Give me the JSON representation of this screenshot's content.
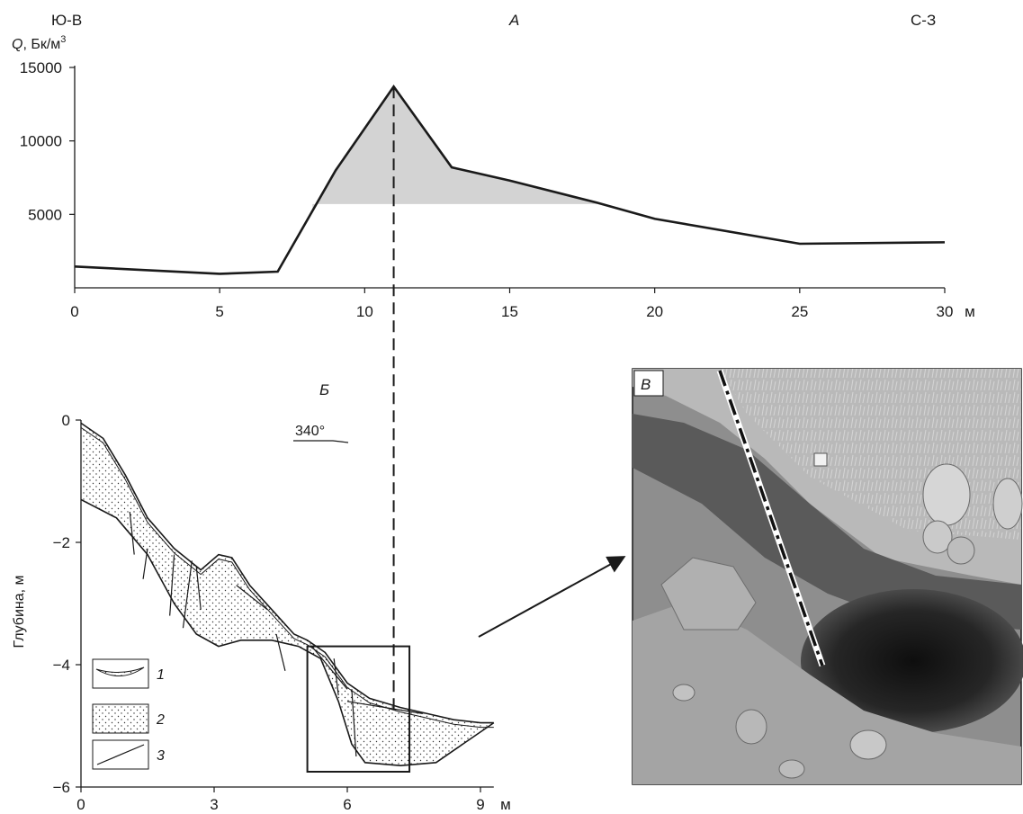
{
  "chart_data": [
    {
      "panel": "А",
      "type": "area",
      "corner_labels": {
        "left": "Ю-В",
        "right": "С-З"
      },
      "ylabel_symbol": "Q",
      "ylabel_units": ", Бк/м",
      "ylabel_sup": "3",
      "xunit": "м",
      "xlim": [
        0,
        30
      ],
      "ylim": [
        0,
        15000
      ],
      "xticks": [
        0,
        5,
        10,
        15,
        20,
        25,
        30
      ],
      "xtick_labels": [
        "0",
        "5",
        "10",
        "15",
        "20",
        "25",
        "30"
      ],
      "yticks": [
        5000,
        10000,
        15000
      ],
      "ytick_labels": [
        "5000",
        "10000",
        "15000"
      ],
      "series": [
        {
          "x": [
            0,
            5,
            7,
            9,
            11,
            13,
            15,
            18,
            20,
            25,
            30
          ],
          "y": [
            1450,
            950,
            1100,
            8000,
            13700,
            8200,
            7300,
            5800,
            4700,
            3000,
            3100
          ]
        }
      ],
      "shaded_above_y": 5700,
      "shaded_x_range": [
        8.2,
        18
      ],
      "marker_x": 11
    },
    {
      "panel": "Б",
      "type": "diagram",
      "ylabel": "Глубина, м",
      "xunit": "м",
      "xlim": [
        0,
        9.3
      ],
      "ylim": [
        -6,
        0
      ],
      "xticks": [
        0,
        3,
        6,
        9
      ],
      "xtick_labels": [
        "0",
        "3",
        "6",
        "9"
      ],
      "yticks": [
        0,
        -2,
        -4,
        -6
      ],
      "ytick_labels": [
        "0",
        "−2",
        "−4",
        "−6"
      ],
      "azimuth": "340°",
      "surface_profile": {
        "x": [
          0,
          0.5,
          1.0,
          1.5,
          2.1,
          2.7,
          3.1,
          3.4,
          3.8,
          4.3,
          4.8,
          5.1,
          5.5,
          6.0,
          6.5,
          7.2,
          7.8,
          8.4,
          9.0,
          9.3
        ],
        "y": [
          -0.05,
          -0.3,
          -0.9,
          -1.6,
          -2.1,
          -2.45,
          -2.2,
          -2.25,
          -2.7,
          -3.1,
          -3.5,
          -3.6,
          -3.8,
          -4.3,
          -4.55,
          -4.7,
          -4.8,
          -4.9,
          -4.95,
          -4.95
        ]
      },
      "base_profile": {
        "x": [
          0,
          0.8,
          1.5,
          2.1,
          2.6,
          3.1,
          3.6,
          4.3,
          4.9,
          5.4,
          5.8,
          6.1,
          6.4,
          7.2,
          8.0,
          8.6,
          9.3
        ],
        "y": [
          -1.3,
          -1.6,
          -2.2,
          -3.0,
          -3.5,
          -3.7,
          -3.6,
          -3.6,
          -3.7,
          -3.9,
          -4.6,
          -5.3,
          -5.6,
          -5.65,
          -5.6,
          -5.3,
          -4.95
        ]
      },
      "zoom_box": {
        "x": [
          5.1,
          7.4
        ],
        "y": [
          -3.7,
          -5.75
        ]
      },
      "legend": [
        {
          "id": "1",
          "label": "1"
        },
        {
          "id": "2",
          "label": "2"
        },
        {
          "id": "3",
          "label": "3"
        }
      ]
    },
    {
      "panel": "В",
      "type": "photo"
    }
  ]
}
